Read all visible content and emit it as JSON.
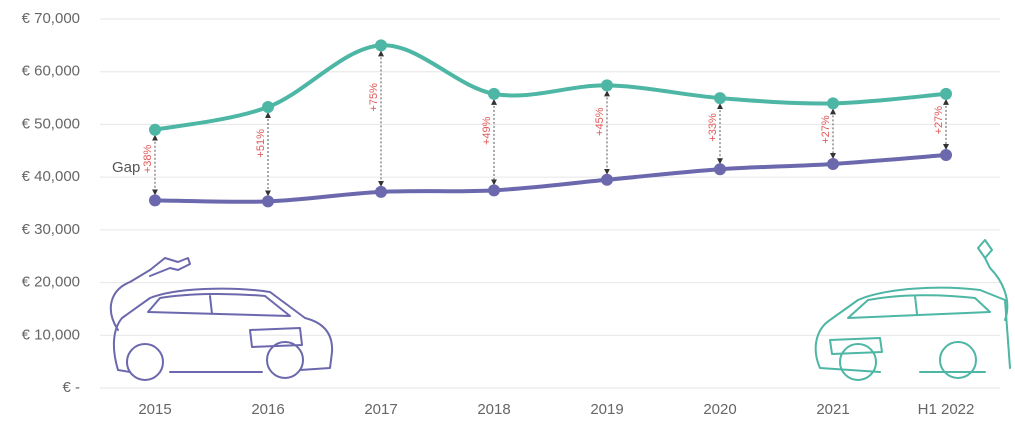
{
  "chart_data": {
    "type": "line",
    "categories": [
      "2015",
      "2016",
      "2017",
      "2018",
      "2019",
      "2020",
      "2021",
      "H1 2022"
    ],
    "series": [
      {
        "color": "#4db6a4",
        "values": [
          49000,
          53300,
          65000,
          55800,
          57400,
          55000,
          54000,
          55800
        ]
      },
      {
        "color": "#6b68ad",
        "values": [
          35600,
          35400,
          37200,
          37500,
          39500,
          41500,
          42500,
          44200
        ]
      }
    ],
    "gap_title": "Gap",
    "gap_labels": [
      "+38%",
      "+51%",
      "+75%",
      "+49%",
      "+45%",
      "+33%",
      "+27%",
      "+27%"
    ],
    "ylim": [
      0,
      70000
    ],
    "yticks": [
      {
        "value": 0,
        "label": "€ -"
      },
      {
        "value": 10000,
        "label": "€ 10,000"
      },
      {
        "value": 20000,
        "label": "€ 20,000"
      },
      {
        "value": 30000,
        "label": "€ 30,000"
      },
      {
        "value": 40000,
        "label": "€ 40,000"
      },
      {
        "value": 50000,
        "label": "€ 50,000"
      },
      {
        "value": 60000,
        "label": "€ 60,000"
      },
      {
        "value": 70000,
        "label": "€ 70,000"
      }
    ],
    "grid": true
  }
}
